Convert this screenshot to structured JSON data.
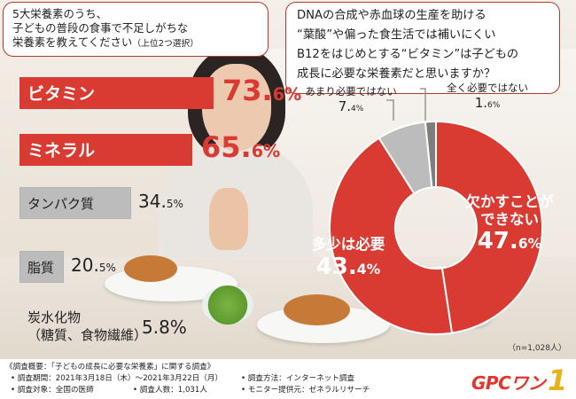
{
  "left_question": {
    "line1": "5大栄養素のうち、",
    "line2": "子どもの普段の食事で不足しがちな",
    "line3": "栄養素を教えてください",
    "note": "（上位2つ選択）"
  },
  "right_question": {
    "line1": "DNAの合成や赤血球の生産を助ける",
    "line2": "“葉酸”や偏った食生活では補いにくい",
    "line3": "B12をはじめとする“ビタミン”は子どもの",
    "line4": "成長に必要な栄養素だと思いますか？"
  },
  "n_note": "（n=1,028人）",
  "colors": {
    "red": "#d93a32",
    "gray": "#bcbcbc",
    "dark": "#7d7d7d",
    "text": "#222222"
  },
  "footer": {
    "heading": "《調査概要：「子どもの成長に必要な栄養素」に関する調査》",
    "period": "• 調査期間：2021年3月18日（木）～2021年3月22日（月）",
    "method": "• 調査方法：インターネット調査",
    "target": "• 調査対象：全国の医師",
    "count": "• 調査人数：1,031人",
    "provider": "• モニター提供元：ゼネラルリサーチ"
  },
  "logo": {
    "text": "GPCワン",
    "mark": "1"
  },
  "chart_data": [
    {
      "type": "bar",
      "orientation": "horizontal",
      "categories": [
        "ビタミン",
        "ミネラル",
        "タンパク質",
        "脂質",
        "炭水化物（糖質、食物繊維）"
      ],
      "category_lines": [
        [
          "ビタミン"
        ],
        [
          "ミネラル"
        ],
        [
          "タンパク質"
        ],
        [
          "脂質"
        ],
        [
          "炭水化物",
          "（糖質、食物繊維）"
        ]
      ],
      "values": [
        73.6,
        65.6,
        34.5,
        20.5,
        5.8
      ],
      "value_labels": [
        [
          "73.",
          "6%"
        ],
        [
          "65.",
          "6%"
        ],
        [
          "34.",
          "5%"
        ],
        [
          "20.",
          "5%"
        ],
        [
          "5.8%",
          ""
        ]
      ],
      "unit": "%",
      "highlight": [
        true,
        true,
        false,
        false,
        false
      ]
    },
    {
      "type": "pie",
      "style": "donut",
      "start": "top",
      "direction": "clockwise",
      "labels": [
        "欠かすことができない",
        "多少は必要",
        "あまり必要ではない",
        "全く必要ではない"
      ],
      "label_lines": [
        [
          "欠かすことが",
          "できない"
        ],
        [
          "多少は必要"
        ],
        [
          "あまり必要ではない"
        ],
        [
          "全く必要ではない"
        ]
      ],
      "values": [
        47.6,
        43.4,
        7.4,
        1.6
      ],
      "value_labels": [
        [
          "47.",
          "6%"
        ],
        [
          "43.",
          "4%"
        ],
        [
          "7.",
          "4%"
        ],
        [
          "1.",
          "6%"
        ]
      ],
      "colors": [
        "#d93a32",
        "#d93a32",
        "#bcbcbc",
        "#7d7d7d"
      ]
    }
  ]
}
